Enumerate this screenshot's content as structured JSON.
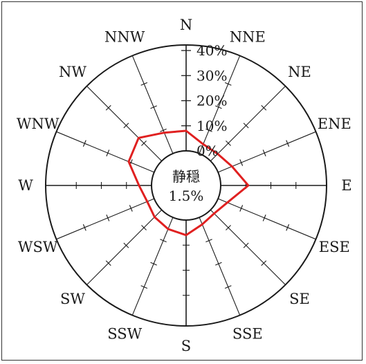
{
  "chart_data": {
    "type": "radar",
    "title": "",
    "directions": [
      "N",
      "NNE",
      "NE",
      "ENE",
      "E",
      "ESE",
      "SE",
      "SSE",
      "S",
      "SSW",
      "SW",
      "WSW",
      "W",
      "WNW",
      "NW",
      "NNW"
    ],
    "ring_labels": [
      "0%",
      "10%",
      "20%",
      "30%",
      "40%"
    ],
    "rmax": 40,
    "series": [
      {
        "color": "#e02020",
        "values": [
          8,
          4,
          4,
          6,
          11,
          4,
          2,
          3,
          6,
          5,
          4,
          3,
          5,
          11,
          13,
          9
        ]
      }
    ],
    "calm": {
      "label": "静穏",
      "value": "1.5%"
    },
    "colors": {
      "series": "#e02020",
      "axis": "#1a1a1a"
    }
  }
}
